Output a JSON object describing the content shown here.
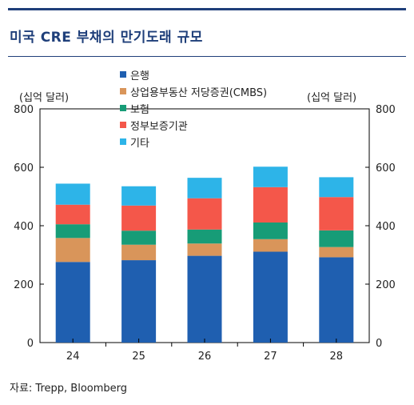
{
  "title": "미국 CRE 부채의 만기도래 규모",
  "source": "자료: Trepp, Bloomberg",
  "chart_data": {
    "type": "bar",
    "stacked": true,
    "categories": [
      "24",
      "25",
      "26",
      "27",
      "28"
    ],
    "series": [
      {
        "name": "은행",
        "color": "#1f5fb0",
        "values": [
          276,
          282,
          297,
          311,
          292
        ]
      },
      {
        "name": "상업용부동산 저당증권(CMBS)",
        "color": "#d9955a",
        "values": [
          82,
          53,
          42,
          43,
          35
        ]
      },
      {
        "name": "보험",
        "color": "#179c77",
        "values": [
          47,
          48,
          48,
          57,
          57
        ]
      },
      {
        "name": "정부보증기관",
        "color": "#f4574a",
        "values": [
          67,
          86,
          107,
          121,
          114
        ]
      },
      {
        "name": "기타",
        "color": "#2db4e8",
        "values": [
          72,
          66,
          70,
          70,
          68
        ]
      }
    ],
    "ylabel_left": "(십억 달러)",
    "ylabel_right": "(십억 달러)",
    "ylim": [
      0,
      800
    ],
    "yticks": [
      "0",
      "200",
      "400",
      "600",
      "800"
    ],
    "legend_position": "top-center",
    "grid": false
  }
}
